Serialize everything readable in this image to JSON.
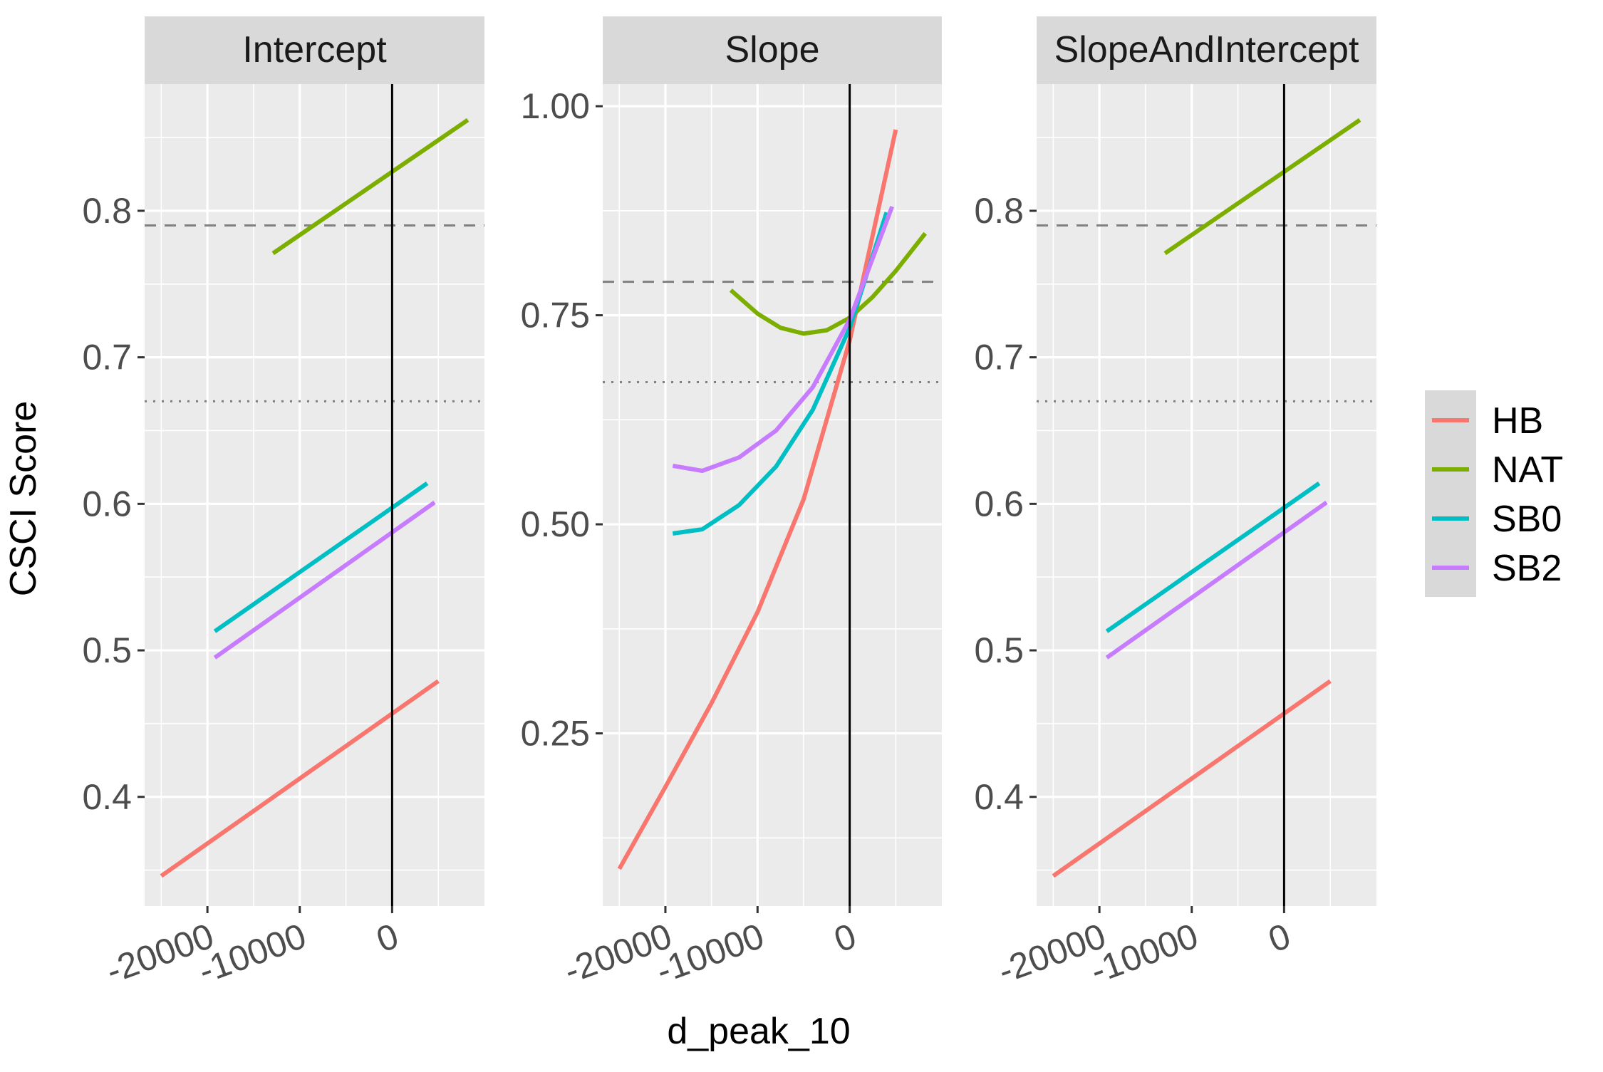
{
  "chart_data": {
    "type": "line",
    "xlabel": "d_peak_10",
    "ylabel": "CSCI Score",
    "legend": {
      "position": "right",
      "entries": [
        "HB",
        "NAT",
        "SB0",
        "SB2"
      ]
    },
    "colors": {
      "HB": "#F8766D",
      "NAT": "#7CAE00",
      "SB0": "#00BFC4",
      "SB2": "#C77CFF"
    },
    "x_ticks": [
      -20000,
      -10000,
      0
    ],
    "x_tick_labels": [
      "-20000",
      "-10000",
      "0"
    ],
    "x_range": [
      -26800,
      10000
    ],
    "vline_x": 0,
    "panels": [
      {
        "strip": "Intercept",
        "y_ticks": [
          0.4,
          0.5,
          0.6,
          0.7,
          0.8
        ],
        "y_tick_labels": [
          "0.4",
          "0.5",
          "0.6",
          "0.7",
          "0.8"
        ],
        "y_range": [
          0.3255,
          0.8865
        ],
        "hline_dashed": 0.79,
        "hline_dotted": 0.67,
        "series": [
          {
            "name": "HB",
            "x": [
              -25000,
              5000
            ],
            "y": [
              0.346,
              0.479
            ]
          },
          {
            "name": "NAT",
            "x": [
              -12900,
              8200
            ],
            "y": [
              0.771,
              0.862
            ]
          },
          {
            "name": "SB0",
            "x": [
              -19200,
              3800
            ],
            "y": [
              0.513,
              0.614
            ]
          },
          {
            "name": "SB2",
            "x": [
              -19200,
              4600
            ],
            "y": [
              0.495,
              0.601
            ]
          }
        ]
      },
      {
        "strip": "Slope",
        "y_ticks": [
          0.25,
          0.5,
          0.75,
          1.0
        ],
        "y_tick_labels": [
          "0.25",
          "0.50",
          "0.75",
          "1.00"
        ],
        "y_range": [
          0.0435,
          1.0265
        ],
        "hline_dashed": 0.79,
        "hline_dotted": 0.67,
        "series": [
          {
            "name": "HB",
            "x": [
              -25000,
              -20000,
              -15000,
              -10000,
              -5000,
              0,
              5000
            ],
            "y": [
              0.088,
              0.186,
              0.286,
              0.395,
              0.53,
              0.72,
              0.972
            ]
          },
          {
            "name": "NAT",
            "x": [
              -12900,
              -10000,
              -7500,
              -5000,
              -2500,
              0,
              2500,
              5000,
              8200
            ],
            "y": [
              0.78,
              0.752,
              0.735,
              0.728,
              0.732,
              0.747,
              0.772,
              0.803,
              0.848
            ]
          },
          {
            "name": "SB0",
            "x": [
              -19200,
              -16000,
              -12000,
              -8000,
              -4000,
              0,
              4000
            ],
            "y": [
              0.489,
              0.494,
              0.523,
              0.569,
              0.637,
              0.735,
              0.873
            ]
          },
          {
            "name": "SB2",
            "x": [
              -19200,
              -16000,
              -12000,
              -8000,
              -4000,
              0,
              4600
            ],
            "y": [
              0.57,
              0.564,
              0.58,
              0.612,
              0.664,
              0.745,
              0.88
            ]
          }
        ]
      },
      {
        "strip": "SlopeAndIntercept",
        "y_ticks": [
          0.4,
          0.5,
          0.6,
          0.7,
          0.8
        ],
        "y_tick_labels": [
          "0.4",
          "0.5",
          "0.6",
          "0.7",
          "0.8"
        ],
        "y_range": [
          0.3255,
          0.8865
        ],
        "hline_dashed": 0.79,
        "hline_dotted": 0.67,
        "series": [
          {
            "name": "HB",
            "x": [
              -25000,
              5000
            ],
            "y": [
              0.346,
              0.479
            ]
          },
          {
            "name": "NAT",
            "x": [
              -12900,
              8200
            ],
            "y": [
              0.771,
              0.862
            ]
          },
          {
            "name": "SB0",
            "x": [
              -19200,
              3800
            ],
            "y": [
              0.513,
              0.614
            ]
          },
          {
            "name": "SB2",
            "x": [
              -19200,
              4600
            ],
            "y": [
              0.495,
              0.601
            ]
          }
        ]
      }
    ]
  }
}
